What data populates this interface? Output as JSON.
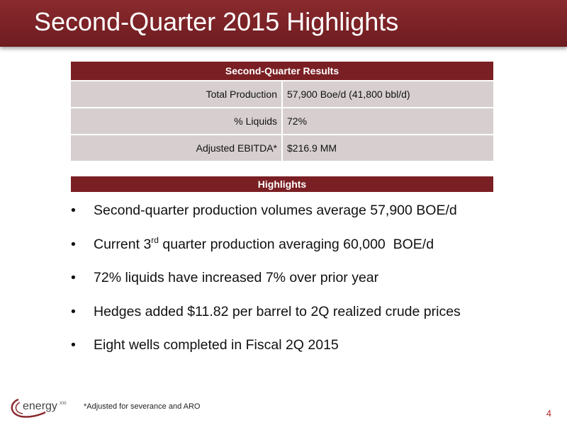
{
  "slide": {
    "title": "Second-Quarter 2015 Highlights",
    "page_number": "4",
    "footnote": "*Adjusted for severance and ARO",
    "logo_text": "energy",
    "logo_superscript": "XXI"
  },
  "results_table": {
    "header": "Second-Quarter Results",
    "rows": [
      {
        "label": "Total Production",
        "value": "57,900 Boe/d (41,800 bbl/d)"
      },
      {
        "label": "% Liquids",
        "value": "72%"
      },
      {
        "label": "Adjusted EBITDA*",
        "value": "$216.9 MM"
      }
    ]
  },
  "highlights": {
    "header": "Highlights",
    "bullet_symbol": "•",
    "items": [
      {
        "text": "Second-quarter production volumes average 57,900 BOE/d"
      },
      {
        "before": "Current 3",
        "sup": "rd",
        "after": " quarter production averaging 60,000  BOE/d"
      },
      {
        "text": "72% liquids have increased 7% over prior year"
      },
      {
        "text": "Hedges added $11.82 per barrel to 2Q realized crude prices"
      },
      {
        "text": "Eight wells completed in Fiscal 2Q 2015"
      }
    ]
  },
  "colors": {
    "title_bar": "#7a1f23",
    "table_header": "#7a1f23",
    "table_row": "#d7cfcf",
    "page_number": "#b22a2a"
  }
}
